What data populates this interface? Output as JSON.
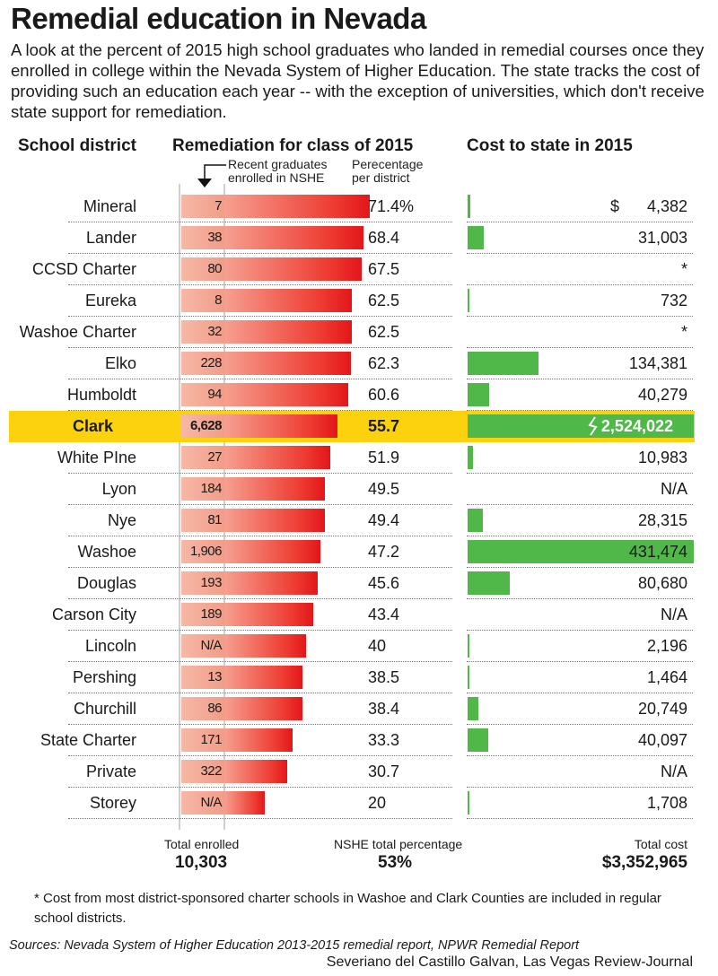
{
  "title": "Remedial education in Nevada",
  "intro": "A look at the percent of 2015 high school graduates who landed in remedial courses once they enrolled in college within the Nevada System of Higher Education. The state tracks the cost of providing such an education each year -- with the exception of universities, which don't receive state support for remediation.",
  "headers": {
    "district": "School district",
    "remediation": "Remediation for class of 2015",
    "cost": "Cost to state in 2015",
    "enrolled_note": "Recent graduates enrolled in NSHE",
    "percent_note": "Perecentage per district"
  },
  "chart_data": {
    "type": "bar",
    "highlight": "Clark",
    "colors": {
      "enrolled": "#f4a993",
      "percent": "#ee3c32",
      "cost": "#4fb848",
      "highlight": "#fcd20f"
    },
    "rows": [
      {
        "district": "Mineral",
        "enrolled": "7",
        "percent": 71.4,
        "percent_label": "71.4%",
        "cost": 4382,
        "cost_label": "4,382",
        "dollar": "$"
      },
      {
        "district": "Lander",
        "enrolled": "38",
        "percent": 68.4,
        "percent_label": "68.4",
        "cost": 31003,
        "cost_label": "31,003"
      },
      {
        "district": "CCSD Charter",
        "enrolled": "80",
        "percent": 67.5,
        "percent_label": "67.5",
        "cost": null,
        "cost_label": "*"
      },
      {
        "district": "Eureka",
        "enrolled": "8",
        "percent": 62.5,
        "percent_label": "62.5",
        "cost": 732,
        "cost_label": "732"
      },
      {
        "district": "Washoe Charter",
        "enrolled": "32",
        "percent": 62.5,
        "percent_label": "62.5",
        "cost": null,
        "cost_label": "*"
      },
      {
        "district": "Elko",
        "enrolled": "228",
        "percent": 62.3,
        "percent_label": "62.3",
        "cost": 134381,
        "cost_label": "134,381"
      },
      {
        "district": "Humboldt",
        "enrolled": "94",
        "percent": 60.6,
        "percent_label": "60.6",
        "cost": 40279,
        "cost_label": "40,279"
      },
      {
        "district": "Clark",
        "enrolled": "6,628",
        "percent": 55.7,
        "percent_label": "55.7",
        "cost": 2524022,
        "cost_label": "2,524,022"
      },
      {
        "district": "White PIne",
        "enrolled": "27",
        "percent": 51.9,
        "percent_label": "51.9",
        "cost": 10983,
        "cost_label": "10,983"
      },
      {
        "district": "Lyon",
        "enrolled": "184",
        "percent": 49.5,
        "percent_label": "49.5",
        "cost": null,
        "cost_label": "N/A"
      },
      {
        "district": "Nye",
        "enrolled": "81",
        "percent": 49.4,
        "percent_label": "49.4",
        "cost": 28315,
        "cost_label": "28,315"
      },
      {
        "district": "Washoe",
        "enrolled": "1,906",
        "percent": 47.2,
        "percent_label": "47.2",
        "cost": 431474,
        "cost_label": "431,474"
      },
      {
        "district": "Douglas",
        "enrolled": "193",
        "percent": 45.6,
        "percent_label": "45.6",
        "cost": 80680,
        "cost_label": "80,680"
      },
      {
        "district": "Carson City",
        "enrolled": "189",
        "percent": 43.4,
        "percent_label": "43.4",
        "cost": null,
        "cost_label": "N/A"
      },
      {
        "district": "Lincoln",
        "enrolled": "N/A",
        "percent": 40,
        "percent_label": "40",
        "cost": 2196,
        "cost_label": "2,196"
      },
      {
        "district": "Pershing",
        "enrolled": "13",
        "percent": 38.5,
        "percent_label": "38.5",
        "cost": 1464,
        "cost_label": "1,464"
      },
      {
        "district": "Churchill",
        "enrolled": "86",
        "percent": 38.4,
        "percent_label": "38.4",
        "cost": 20749,
        "cost_label": "20,749"
      },
      {
        "district": "State Charter",
        "enrolled": "171",
        "percent": 33.3,
        "percent_label": "33.3",
        "cost": 40097,
        "cost_label": "40,097"
      },
      {
        "district": "Private",
        "enrolled": "322",
        "percent": 30.7,
        "percent_label": "30.7",
        "cost": null,
        "cost_label": "N/A"
      },
      {
        "district": "Storey",
        "enrolled": "N/A",
        "percent": 20,
        "percent_label": "20",
        "cost": 1708,
        "cost_label": "1,708"
      }
    ]
  },
  "totals": {
    "enrolled_label": "Total enrolled",
    "enrolled_value": "10,303",
    "percent_label": "NSHE total percentage",
    "percent_value": "53%",
    "cost_label": "Total cost",
    "cost_value": "$3,352,965"
  },
  "footnote": "* Cost from most district-sponsored charter schools in Washoe and Clark Counties are included in regular school districts.",
  "sources": "Sources: Nevada System of Higher Education 2013-2015 remedial report, NPWR Remedial Report",
  "credit": "Severiano del Castillo Galvan, Las Vegas Review-Journal"
}
